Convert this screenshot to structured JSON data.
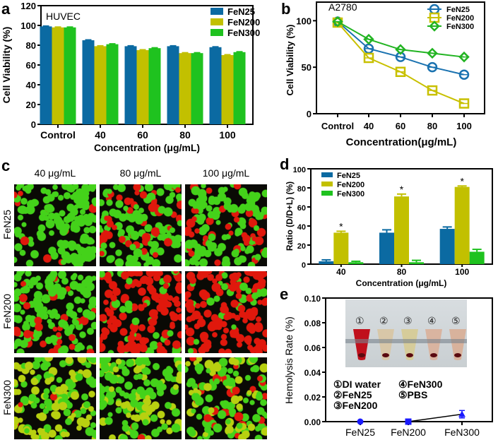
{
  "panels": {
    "a": "a",
    "b": "b",
    "c": "c",
    "d": "d",
    "e": "e"
  },
  "chart_data": [
    {
      "id": "a",
      "type": "bar",
      "title": "HUVEC",
      "xlabel": "Concentration (μg/mL)",
      "ylabel": "Cell Viability (%)",
      "ylim": [
        0,
        120
      ],
      "yticks": [
        0,
        20,
        40,
        60,
        80,
        100,
        120
      ],
      "categories": [
        "Control",
        "40",
        "60",
        "80",
        "100"
      ],
      "legend": "top-right",
      "series": [
        {
          "name": "FeN25",
          "color": "#0b6aa2",
          "values": [
            99,
            85,
            79,
            79,
            78
          ]
        },
        {
          "name": "FeN200",
          "color": "#c2c000",
          "values": [
            98,
            79,
            75,
            72,
            70
          ]
        },
        {
          "name": "FeN300",
          "color": "#1fc21f",
          "values": [
            98,
            81,
            77,
            72,
            73
          ]
        }
      ]
    },
    {
      "id": "b",
      "type": "line",
      "title": "A2780",
      "xlabel": "Concentration(μg/mL)",
      "ylabel": "Cell Viability (%)",
      "ylim": [
        0,
        120
      ],
      "yticks": [
        0,
        50,
        100
      ],
      "categories": [
        "Control",
        "40",
        "60",
        "80",
        "100"
      ],
      "legend": "top-right",
      "series": [
        {
          "name": "FeN25",
          "color": "#1a72b0",
          "marker": "circle",
          "values": [
            99,
            70,
            61,
            50,
            42
          ]
        },
        {
          "name": "FeN200",
          "color": "#c8c000",
          "marker": "square",
          "values": [
            98,
            60,
            45,
            25,
            11
          ]
        },
        {
          "name": "FeN300",
          "color": "#22b422",
          "marker": "diamond",
          "values": [
            99,
            80,
            69,
            65,
            61
          ]
        }
      ]
    },
    {
      "id": "d",
      "type": "bar",
      "xlabel": "Concentration (μg/mL)",
      "ylabel": "Ratio (D/D+L) (%)",
      "ylim": [
        0,
        100
      ],
      "yticks": [
        0,
        20,
        40,
        60,
        80,
        100
      ],
      "categories": [
        "40",
        "80",
        "100"
      ],
      "legend": "top-left",
      "annotation": "*",
      "series": [
        {
          "name": "FeN25",
          "color": "#0b6aa2",
          "values": [
            3,
            33,
            37
          ],
          "errors": [
            1.5,
            3,
            2
          ]
        },
        {
          "name": "FeN200",
          "color": "#c2c000",
          "values": [
            33,
            71,
            81
          ],
          "errors": [
            1.5,
            2.5,
            1
          ]
        },
        {
          "name": "FeN300",
          "color": "#1fc21f",
          "values": [
            2,
            2,
            13
          ],
          "errors": [
            1,
            2,
            2.5
          ]
        }
      ]
    },
    {
      "id": "e",
      "type": "line",
      "ylabel": "Hemolysis Rate (%)",
      "ylim": [
        0,
        0.1
      ],
      "yticks": [
        "0.00",
        "0.02",
        "0.04",
        "0.06",
        "0.08",
        "0.10"
      ],
      "categories": [
        "FeN25",
        "FeN200",
        "FeN300"
      ],
      "values": [
        0,
        0,
        0.006
      ],
      "errors": [
        0,
        0,
        0.003
      ],
      "color": "#1a1aff"
    }
  ],
  "panel_c": {
    "columns": [
      "40 μg/mL",
      "80 μg/mL",
      "100 μg/mL"
    ],
    "rows": [
      "FeN25",
      "FeN200",
      "FeN300"
    ],
    "red_fraction": [
      [
        0.05,
        0.35,
        0.3
      ],
      [
        0.2,
        0.75,
        0.85
      ],
      [
        0.03,
        0.03,
        0.15
      ]
    ]
  },
  "panel_e_inset": {
    "tubes": [
      "①",
      "②",
      "③",
      "④",
      "⑤"
    ],
    "legend": [
      "①DI water",
      "②FeN25",
      "③FeN200",
      "④FeN300",
      "⑤PBS"
    ]
  }
}
